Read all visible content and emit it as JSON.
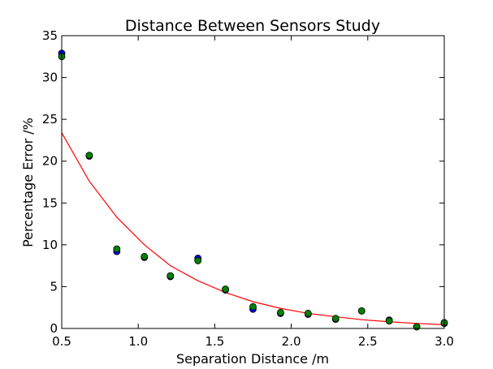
{
  "chart_data": {
    "type": "scatter",
    "title": "Distance Between Sensors Study",
    "xlabel": "Separation Distance /m",
    "ylabel": "Percentage Error /%",
    "xlim": [
      0.5,
      3.0
    ],
    "ylim": [
      0,
      35
    ],
    "xticks": [
      0.5,
      1.0,
      1.5,
      2.0,
      2.5,
      3.0
    ],
    "xtick_labels": [
      "0.5",
      "1.0",
      "1.5",
      "2.0",
      "2.5",
      "3.0"
    ],
    "yticks": [
      0,
      5,
      10,
      15,
      20,
      25,
      30,
      35
    ],
    "ytick_labels": [
      "0",
      "5",
      "10",
      "15",
      "20",
      "25",
      "30",
      "35"
    ],
    "grid": false,
    "legend": false,
    "series": [
      {
        "name": "blue points",
        "kind": "scatter",
        "color": "#0000ff",
        "x": [
          0.5,
          0.68,
          0.86,
          1.04,
          1.21,
          1.39,
          1.57,
          1.75,
          1.93,
          2.11,
          2.29,
          2.46,
          2.64,
          2.82,
          3.0
        ],
        "y": [
          32.9,
          20.6,
          9.2,
          8.5,
          6.2,
          8.4,
          4.6,
          2.3,
          1.8,
          1.7,
          1.1,
          2.1,
          1.0,
          0.2,
          0.6
        ]
      },
      {
        "name": "green points",
        "kind": "scatter",
        "color": "#008000",
        "x": [
          0.5,
          0.68,
          0.86,
          1.04,
          1.21,
          1.39,
          1.57,
          1.75,
          1.93,
          2.11,
          2.29,
          2.46,
          2.64,
          2.82,
          3.0
        ],
        "y": [
          32.5,
          20.7,
          9.5,
          8.6,
          6.3,
          8.1,
          4.7,
          2.6,
          1.9,
          1.8,
          1.2,
          2.1,
          0.9,
          0.2,
          0.7
        ]
      },
      {
        "name": "fit curve",
        "kind": "line",
        "color": "#ff0000",
        "x": [
          0.5,
          0.68,
          0.86,
          1.04,
          1.21,
          1.39,
          1.57,
          1.75,
          1.93,
          2.11,
          2.29,
          2.46,
          2.64,
          2.82,
          3.0
        ],
        "y": [
          23.4,
          17.6,
          13.3,
          10.0,
          7.5,
          5.7,
          4.3,
          3.2,
          2.4,
          1.8,
          1.4,
          1.05,
          0.8,
          0.6,
          0.45
        ]
      }
    ]
  }
}
